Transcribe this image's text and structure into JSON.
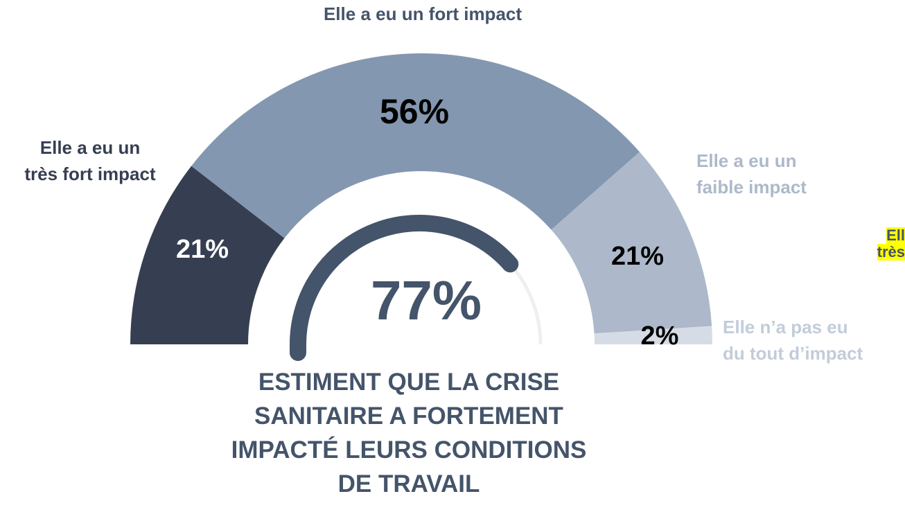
{
  "chart_data": {
    "type": "semi_donut",
    "categories": [
      "Elle a eu un\ntrès fort impact",
      "Elle a eu un fort impact",
      "Elle a eu un\nfaible impact",
      "Elle n’a pas eu\ndu tout d’impact"
    ],
    "values": [
      21,
      56,
      21,
      2
    ],
    "value_labels": [
      "21%",
      "56%",
      "21%",
      "2%"
    ],
    "colors": [
      "#363f51",
      "#8497b0",
      "#adb9ca",
      "#d6dce5"
    ],
    "gauge": {
      "value": 77,
      "value_label": "77%",
      "color": "#44546a",
      "track_color": "#efefef"
    },
    "subtitle": "ESTIMENT QUE LA CRISE\nSANITAIRE A FORTEMENT\nIMPACTÉ LEURS CONDITIONS\nDE TRAVAIL",
    "annotations": [
      "Ell",
      "très"
    ]
  }
}
